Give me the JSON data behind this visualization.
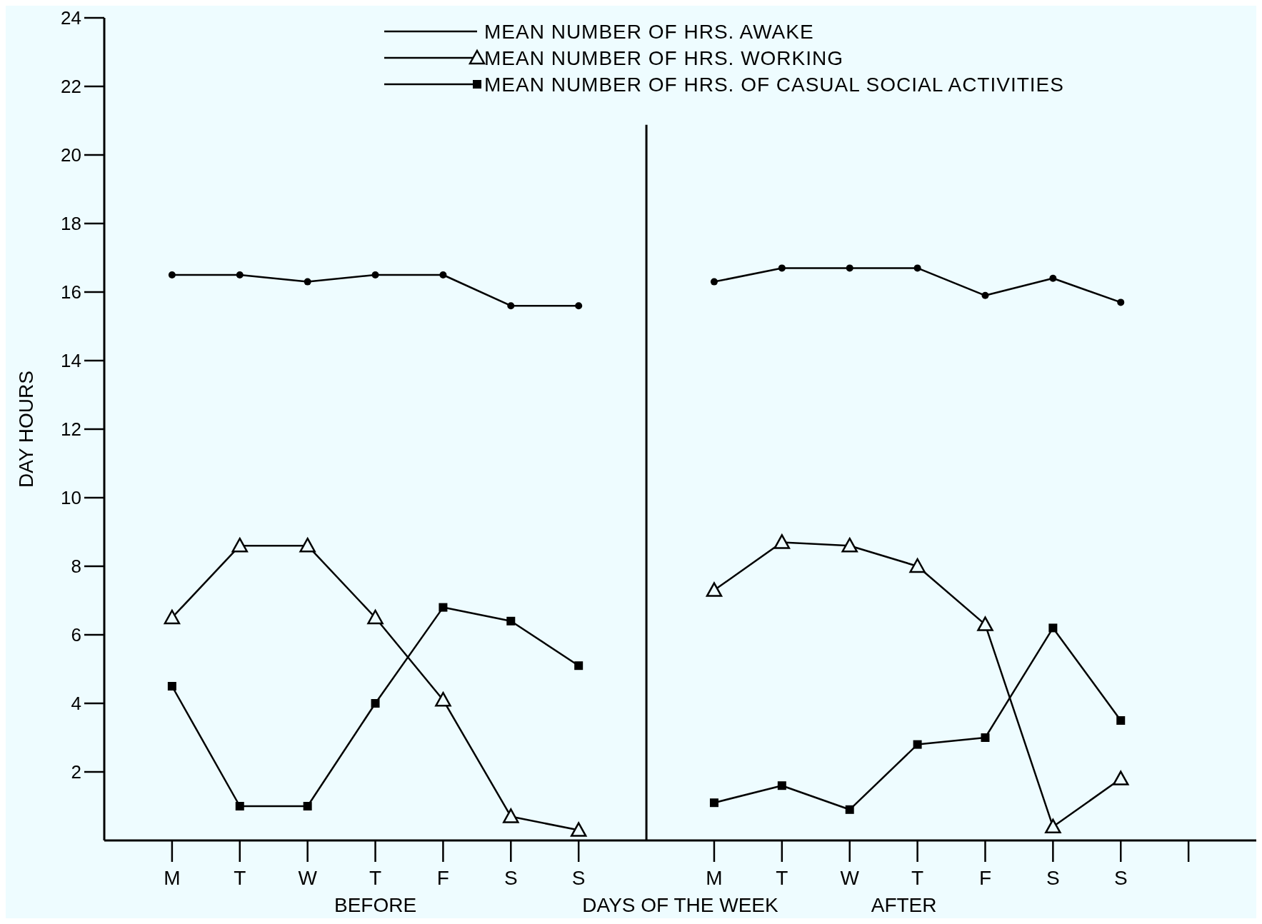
{
  "chart_data": {
    "type": "line",
    "xlabel": "DAYS OF THE WEEK",
    "ylabel": "DAY HOURS",
    "categories": [
      "M",
      "T",
      "W",
      "T",
      "F",
      "S",
      "S",
      null,
      "M",
      "T",
      "W",
      "T",
      "F",
      "S",
      "S",
      null
    ],
    "ylim": [
      0,
      24
    ],
    "yticks": [
      2,
      4,
      6,
      8,
      10,
      12,
      14,
      16,
      18,
      20,
      22,
      24
    ],
    "series": [
      {
        "name": "MEAN NUMBER OF HRS. AWAKE",
        "color": "#000000",
        "marker": "circle",
        "values": [
          16.5,
          16.5,
          16.3,
          16.5,
          16.5,
          15.6,
          15.6,
          null,
          16.3,
          16.7,
          16.7,
          16.7,
          15.9,
          16.4,
          15.7,
          null
        ]
      },
      {
        "name": "MEAN NUMBER OF HRS. WORKING",
        "color": "#000000",
        "marker": "triangle",
        "values": [
          6.5,
          8.6,
          8.6,
          6.5,
          4.1,
          0.7,
          0.3,
          null,
          7.3,
          8.7,
          8.6,
          8.0,
          6.3,
          0.4,
          1.8,
          null
        ]
      },
      {
        "name": "MEAN NUMBER OF HRS. OF CASUAL SOCIAL ACTIVITIES",
        "color": "#000000",
        "marker": "square",
        "values": [
          4.5,
          1.0,
          1.0,
          4.0,
          6.8,
          6.4,
          5.1,
          null,
          1.1,
          1.6,
          0.9,
          2.8,
          3.0,
          6.2,
          3.5,
          null
        ]
      }
    ],
    "annotations": [
      "BEFORE",
      "AFTER"
    ],
    "legend": "top",
    "line_style": "solid"
  }
}
